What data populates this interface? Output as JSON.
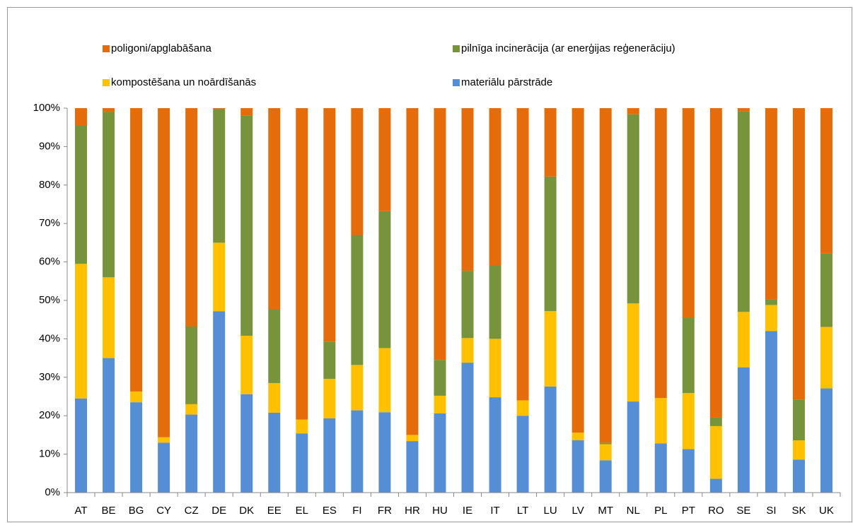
{
  "chart_data": {
    "type": "stacked_bar",
    "categories": [
      "AT",
      "BE",
      "BG",
      "CY",
      "CZ",
      "DE",
      "DK",
      "EE",
      "EL",
      "ES",
      "FI",
      "FR",
      "HR",
      "HU",
      "IE",
      "IT",
      "LT",
      "LU",
      "LV",
      "MT",
      "NL",
      "PL",
      "PT",
      "RO",
      "SE",
      "SI",
      "SK",
      "UK"
    ],
    "series": [
      {
        "name": "materiālu pārstrāde",
        "color": "#558ed5",
        "values": [
          24.5,
          35,
          23.5,
          13,
          20.3,
          47.2,
          25.6,
          20.8,
          15.4,
          19.3,
          21.4,
          20.9,
          13.4,
          20.6,
          33.8,
          24.8,
          20,
          27.6,
          13.6,
          8.4,
          23.7,
          12.8,
          11.3,
          3.6,
          32.6,
          42,
          8.6,
          27.1
        ]
      },
      {
        "name": "kompostēšana un noārdīšanās",
        "color": "#ffc000",
        "values": [
          35,
          21,
          2.8,
          1.4,
          2.7,
          17.8,
          15.2,
          7.7,
          3.6,
          10.3,
          11.8,
          16.7,
          1.6,
          4.6,
          6.4,
          15.2,
          4,
          19.6,
          2,
          4.2,
          25.5,
          11.8,
          14.6,
          13.7,
          14.4,
          6.8,
          5,
          16
        ]
      },
      {
        "name": "pilnīga incinerācija (ar enerģijas reģenerāciju)",
        "color": "#77933c",
        "values": [
          36,
          43,
          0,
          0,
          20.2,
          34.8,
          57.2,
          19.2,
          0,
          9.6,
          33.8,
          35.6,
          0,
          9.3,
          17.5,
          19.1,
          0,
          35,
          0,
          0.4,
          49.2,
          0,
          19.5,
          2.2,
          52.2,
          1.4,
          10.6,
          19.1
        ]
      },
      {
        "name": "poligoni/apglabāšana",
        "color": "#e46c0a",
        "values": [
          4.5,
          1,
          73.7,
          85.6,
          56.8,
          0.2,
          2,
          52.3,
          81,
          60.8,
          33,
          26.8,
          85,
          65.5,
          42.3,
          40.9,
          76,
          17.8,
          84.4,
          87,
          1.6,
          75.4,
          54.6,
          80.5,
          0.8,
          49.8,
          75.8,
          37.8
        ]
      }
    ],
    "ylim": [
      0,
      100
    ],
    "yticks": [
      {
        "value": 0,
        "label": "0%"
      },
      {
        "value": 10,
        "label": "10%"
      },
      {
        "value": 20,
        "label": "20%"
      },
      {
        "value": 30,
        "label": "30%"
      },
      {
        "value": 40,
        "label": "40%"
      },
      {
        "value": 50,
        "label": "50%"
      },
      {
        "value": 60,
        "label": "60%"
      },
      {
        "value": 70,
        "label": "70%"
      },
      {
        "value": 80,
        "label": "80%"
      },
      {
        "value": 90,
        "label": "90%"
      },
      {
        "value": 100,
        "label": "100%"
      }
    ],
    "grid": false
  }
}
